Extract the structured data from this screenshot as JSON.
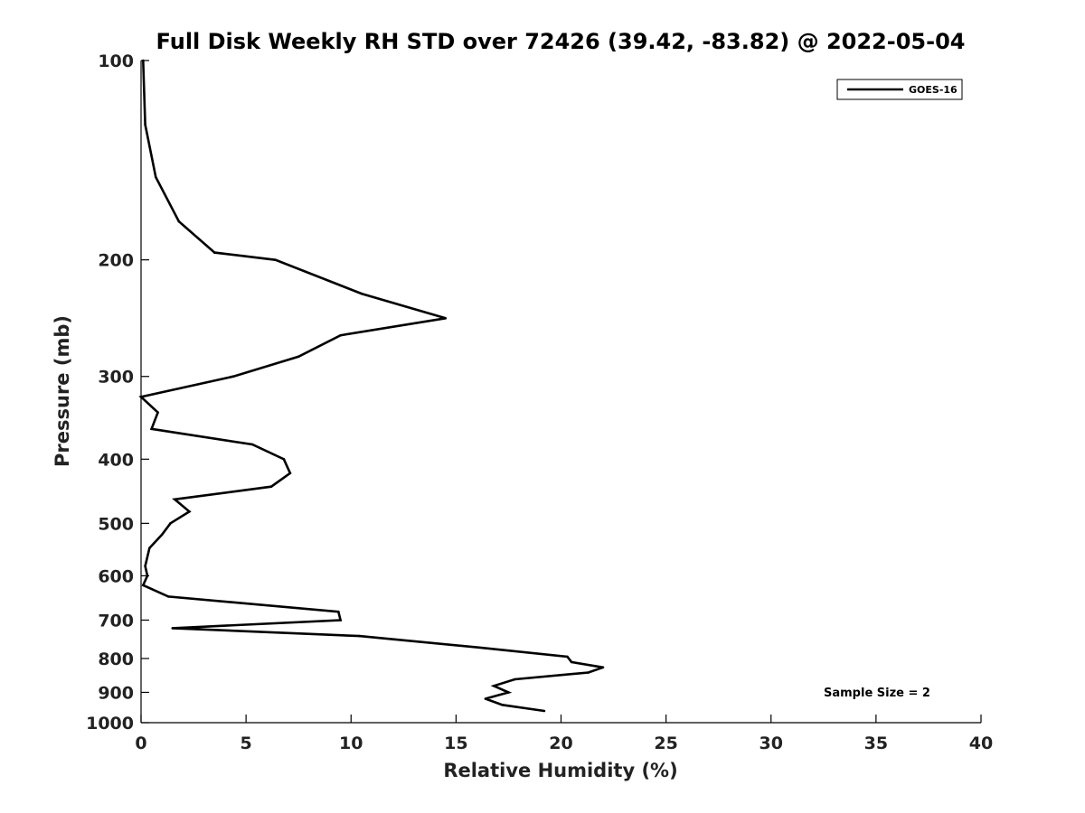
{
  "chart_data": {
    "type": "line",
    "title": "Full Disk Weekly RH STD over 72426 (39.42, -83.82) @ 2022-05-04",
    "xlabel": "Relative Humidity (%)",
    "ylabel": "Pressure (mb)",
    "xlim": [
      0,
      40
    ],
    "ylim": [
      100,
      1000
    ],
    "y_scale": "log",
    "y_reversed": true,
    "grid": false,
    "x_ticks": [
      "0",
      "5",
      "10",
      "15",
      "20",
      "25",
      "30",
      "35",
      "40"
    ],
    "y_ticks": [
      "100",
      "200",
      "300",
      "400",
      "500",
      "600",
      "700",
      "800",
      "900",
      "1000"
    ],
    "legend": {
      "position": "top-right",
      "entries": [
        "GOES-16"
      ]
    },
    "annotation": "Sample Size = 2",
    "series": [
      {
        "name": "GOES-16",
        "color": "#000000",
        "points": [
          [
            0.1,
            100
          ],
          [
            0.2,
            125
          ],
          [
            0.7,
            150
          ],
          [
            1.8,
            175
          ],
          [
            3.5,
            195
          ],
          [
            6.4,
            200
          ],
          [
            10.5,
            225
          ],
          [
            14.5,
            245
          ],
          [
            9.5,
            260
          ],
          [
            7.5,
            280
          ],
          [
            4.4,
            300
          ],
          [
            0.0,
            322
          ],
          [
            0.8,
            340
          ],
          [
            0.5,
            360
          ],
          [
            5.3,
            380
          ],
          [
            6.8,
            400
          ],
          [
            7.1,
            420
          ],
          [
            6.2,
            440
          ],
          [
            1.6,
            460
          ],
          [
            2.3,
            480
          ],
          [
            1.4,
            500
          ],
          [
            1.0,
            520
          ],
          [
            0.4,
            545
          ],
          [
            0.2,
            580
          ],
          [
            0.3,
            600
          ],
          [
            0.1,
            620
          ],
          [
            1.3,
            645
          ],
          [
            9.4,
            680
          ],
          [
            9.5,
            700
          ],
          [
            1.5,
            720
          ],
          [
            10.4,
            740
          ],
          [
            16.1,
            770
          ],
          [
            20.3,
            795
          ],
          [
            20.5,
            810
          ],
          [
            22.0,
            825
          ],
          [
            21.3,
            840
          ],
          [
            17.8,
            860
          ],
          [
            16.8,
            880
          ],
          [
            17.5,
            900
          ],
          [
            16.4,
            920
          ],
          [
            17.2,
            940
          ],
          [
            19.2,
            960
          ]
        ]
      }
    ]
  }
}
